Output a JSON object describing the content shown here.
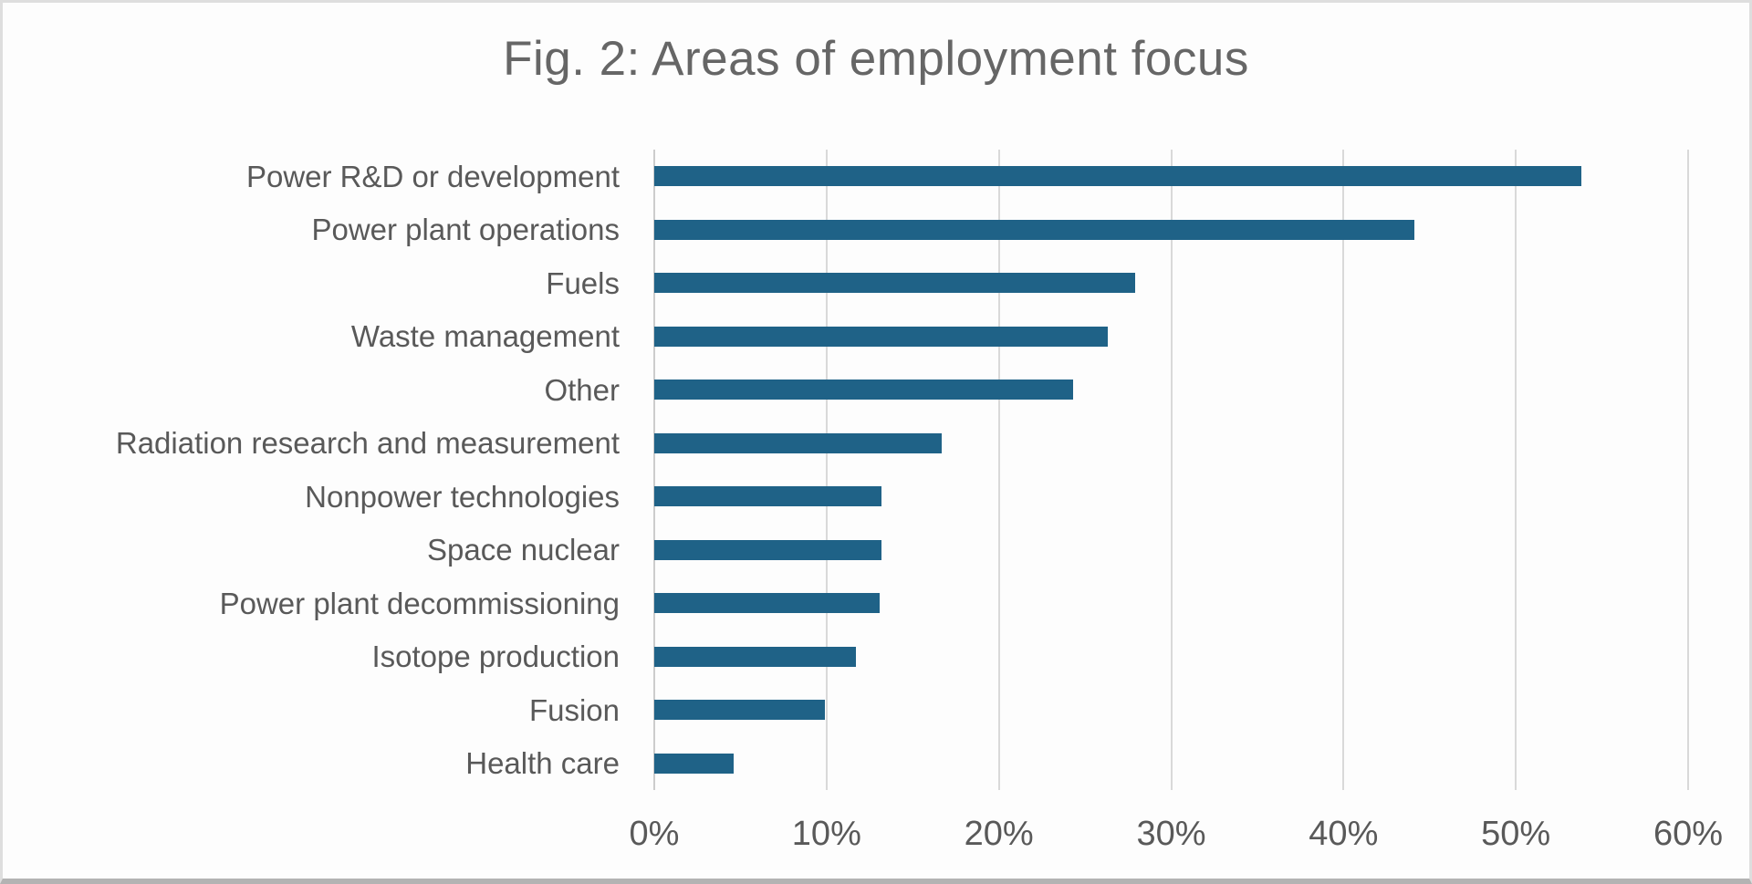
{
  "chart_data": {
    "type": "bar",
    "orientation": "horizontal",
    "title": "Fig. 2: Areas of employment focus",
    "categories": [
      "Power R&D or development",
      "Power plant operations",
      "Fuels",
      "Waste management",
      "Other",
      "Radiation research and measurement",
      "Nonpower technologies",
      "Space nuclear",
      "Power plant decommissioning",
      "Isotope production",
      "Fusion",
      "Health care"
    ],
    "values": [
      53.8,
      44.1,
      27.9,
      26.3,
      24.3,
      16.7,
      13.2,
      13.2,
      13.1,
      11.7,
      9.9,
      4.6
    ],
    "value_unit": "%",
    "xlabel": "",
    "ylabel": "",
    "xlim": [
      0,
      60
    ],
    "x_ticks": [
      {
        "value": 0,
        "label": "0%"
      },
      {
        "value": 10,
        "label": "10%"
      },
      {
        "value": 20,
        "label": "20%"
      },
      {
        "value": 30,
        "label": "30%"
      },
      {
        "value": 40,
        "label": "40%"
      },
      {
        "value": 50,
        "label": "50%"
      },
      {
        "value": 60,
        "label": "60%"
      }
    ],
    "grid": "vertical",
    "legend": "none",
    "bar_color": "#1f6287"
  },
  "style": {
    "title_color": "#666666",
    "category_label_color": "#595959",
    "tick_label_color": "#595959",
    "gridline_color": "#d9d9d9",
    "axis_line_color": "#cccccc",
    "background_color": "#fdfdfd"
  }
}
